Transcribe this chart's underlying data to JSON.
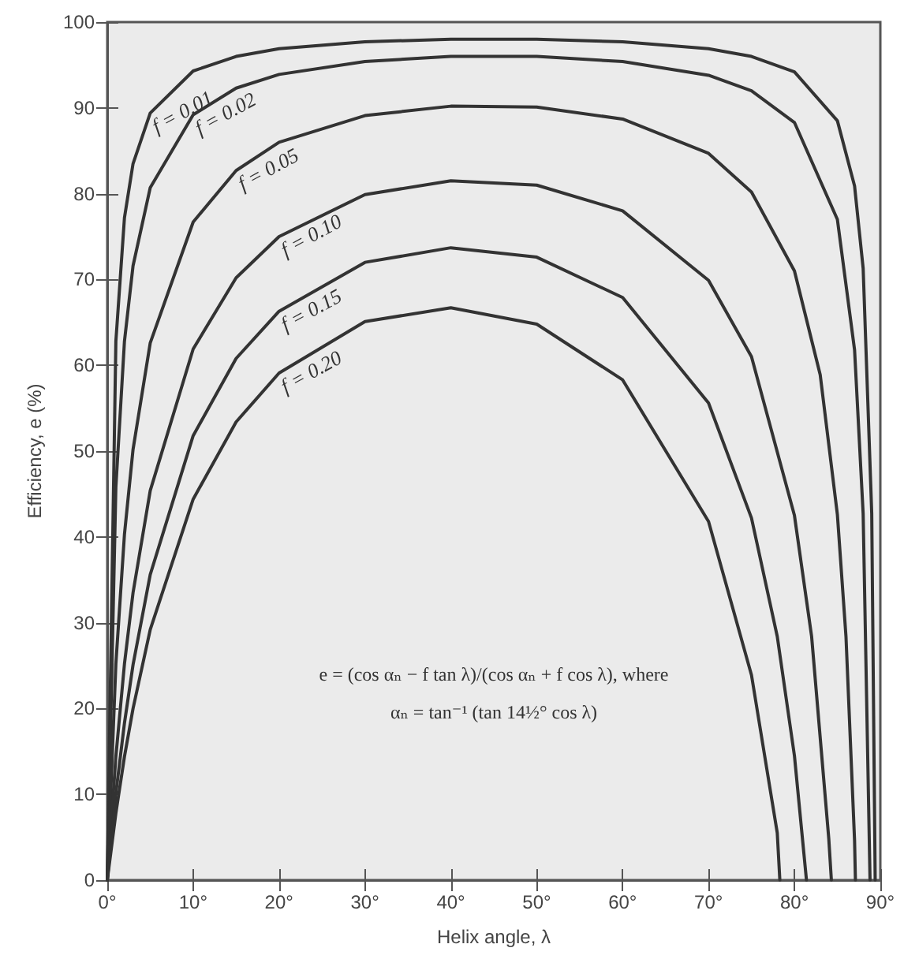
{
  "chart_data": {
    "type": "line",
    "xlabel": "Helix angle, λ",
    "ylabel": "Efficiency, e (%)",
    "xlim": [
      0,
      90
    ],
    "ylim": [
      0,
      100
    ],
    "xticks": [
      {
        "value": 0,
        "label": "0°"
      },
      {
        "value": 10,
        "label": "10°"
      },
      {
        "value": 20,
        "label": "20°"
      },
      {
        "value": 30,
        "label": "30°"
      },
      {
        "value": 40,
        "label": "40°"
      },
      {
        "value": 50,
        "label": "50°"
      },
      {
        "value": 60,
        "label": "60°"
      },
      {
        "value": 70,
        "label": "70°"
      },
      {
        "value": 80,
        "label": "80°"
      },
      {
        "value": 90,
        "label": "90°"
      }
    ],
    "yticks": [
      0,
      10,
      20,
      30,
      40,
      50,
      60,
      70,
      80,
      90,
      100
    ],
    "grid": false,
    "legend": false,
    "marker": "none",
    "line_style": "solid",
    "annotations": [
      "e = (cos αₙ − f tan λ)/(cos αₙ + f cos λ), where",
      "αₙ = tan⁻¹ (tan 14½° cos λ)"
    ],
    "series": [
      {
        "name": "f = 0.01",
        "color": "#333333",
        "x": [
          0,
          1,
          2,
          3,
          5,
          10,
          15,
          20,
          30,
          40,
          50,
          60,
          70,
          75,
          80,
          85,
          87,
          88,
          89,
          89.4
        ],
        "values": [
          0,
          62.8,
          77.2,
          83.5,
          89.4,
          94.3,
          96.0,
          96.9,
          97.7,
          98.0,
          98.0,
          97.7,
          96.9,
          96.0,
          94.2,
          88.5,
          80.9,
          71.3,
          42.7,
          0
        ]
      },
      {
        "name": "f = 0.02",
        "color": "#333333",
        "x": [
          0,
          1,
          2,
          3,
          5,
          10,
          15,
          20,
          30,
          40,
          50,
          60,
          70,
          75,
          80,
          85,
          87,
          88,
          88.8
        ],
        "values": [
          0,
          45.8,
          62.8,
          71.6,
          80.7,
          89.2,
          92.3,
          93.9,
          95.4,
          96.0,
          96.0,
          95.4,
          93.8,
          92.0,
          88.3,
          77.0,
          61.8,
          42.7,
          0
        ]
      },
      {
        "name": "f = 0.05",
        "color": "#333333",
        "x": [
          0,
          1,
          2,
          3,
          5,
          10,
          15,
          20,
          30,
          40,
          50,
          60,
          70,
          75,
          80,
          83,
          85,
          86,
          87,
          87.1
        ],
        "values": [
          0,
          25.2,
          40.3,
          50.2,
          62.6,
          76.7,
          82.7,
          86.0,
          89.1,
          90.2,
          90.1,
          88.7,
          84.7,
          80.2,
          71.0,
          58.9,
          42.6,
          28.4,
          4.6,
          0
        ]
      },
      {
        "name": "f = 0.10",
        "color": "#333333",
        "x": [
          0,
          1,
          2,
          3,
          5,
          10,
          15,
          20,
          30,
          40,
          50,
          60,
          70,
          75,
          80,
          82,
          84,
          84.3
        ],
        "values": [
          0,
          14.4,
          25.2,
          33.5,
          45.4,
          61.9,
          70.2,
          75.0,
          79.9,
          81.5,
          81.0,
          78.0,
          69.9,
          61.0,
          42.5,
          28.4,
          4.8,
          0
        ]
      },
      {
        "name": "f = 0.15",
        "color": "#333333",
        "x": [
          0,
          1,
          2,
          3,
          5,
          10,
          15,
          20,
          30,
          40,
          50,
          60,
          70,
          75,
          78,
          80,
          81.4
        ],
        "values": [
          0,
          10.1,
          18.3,
          25.1,
          35.6,
          51.8,
          60.8,
          66.3,
          72.0,
          73.7,
          72.6,
          67.9,
          55.6,
          42.2,
          28.4,
          14.5,
          0
        ]
      },
      {
        "name": "f = 0.20",
        "color": "#333333",
        "x": [
          0,
          1,
          2,
          3,
          5,
          10,
          15,
          20,
          30,
          40,
          50,
          60,
          70,
          75,
          78,
          78.3
        ],
        "values": [
          0,
          7.8,
          14.4,
          20.0,
          29.2,
          44.4,
          53.4,
          59.1,
          65.1,
          66.7,
          64.8,
          58.3,
          41.8,
          23.9,
          5.5,
          0
        ]
      }
    ]
  }
}
